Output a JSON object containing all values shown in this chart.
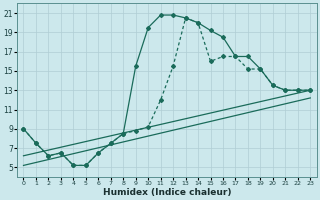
{
  "xlabel": "Humidex (Indice chaleur)",
  "bg_color": "#cce8ec",
  "grid_color": "#b0ced4",
  "line_color": "#1a6b5a",
  "xlim": [
    -0.5,
    23.5
  ],
  "ylim": [
    4.0,
    22.0
  ],
  "xticks": [
    0,
    1,
    2,
    3,
    4,
    5,
    6,
    7,
    8,
    9,
    10,
    11,
    12,
    13,
    14,
    15,
    16,
    17,
    18,
    19,
    20,
    21,
    22,
    23
  ],
  "yticks": [
    5,
    7,
    9,
    11,
    13,
    15,
    17,
    19,
    21
  ],
  "curve_solid_x": [
    0,
    1,
    2,
    3,
    4,
    5,
    6,
    7,
    8,
    9,
    10,
    11,
    12,
    13,
    14,
    15,
    16,
    17,
    18,
    19,
    20,
    21,
    22,
    23
  ],
  "curve_solid_y": [
    9,
    7.5,
    6.2,
    6.5,
    5.2,
    5.2,
    6.5,
    7.5,
    8.5,
    15.5,
    19.5,
    20.8,
    20.8,
    20.5,
    20,
    19.2,
    18.5,
    16.5,
    16.5,
    15.2,
    13.5,
    13.0,
    13.0,
    13.0
  ],
  "curve_dot_x": [
    0,
    1,
    2,
    3,
    4,
    5,
    6,
    7,
    8,
    9,
    10,
    11,
    12,
    13,
    14,
    15,
    16,
    17,
    18,
    19,
    20,
    21,
    22,
    23
  ],
  "curve_dot_y": [
    9,
    7.5,
    6.2,
    6.5,
    5.2,
    5.2,
    6.5,
    7.5,
    8.5,
    8.8,
    9.2,
    12.0,
    15.5,
    20.5,
    20.0,
    16.0,
    16.5,
    16.5,
    15.2,
    15.2,
    13.5,
    13.0,
    13.0,
    13.0
  ],
  "line1_x": [
    0,
    23
  ],
  "line1_y": [
    6.2,
    13.0
  ],
  "line2_x": [
    0,
    23
  ],
  "line2_y": [
    5.2,
    12.2
  ]
}
